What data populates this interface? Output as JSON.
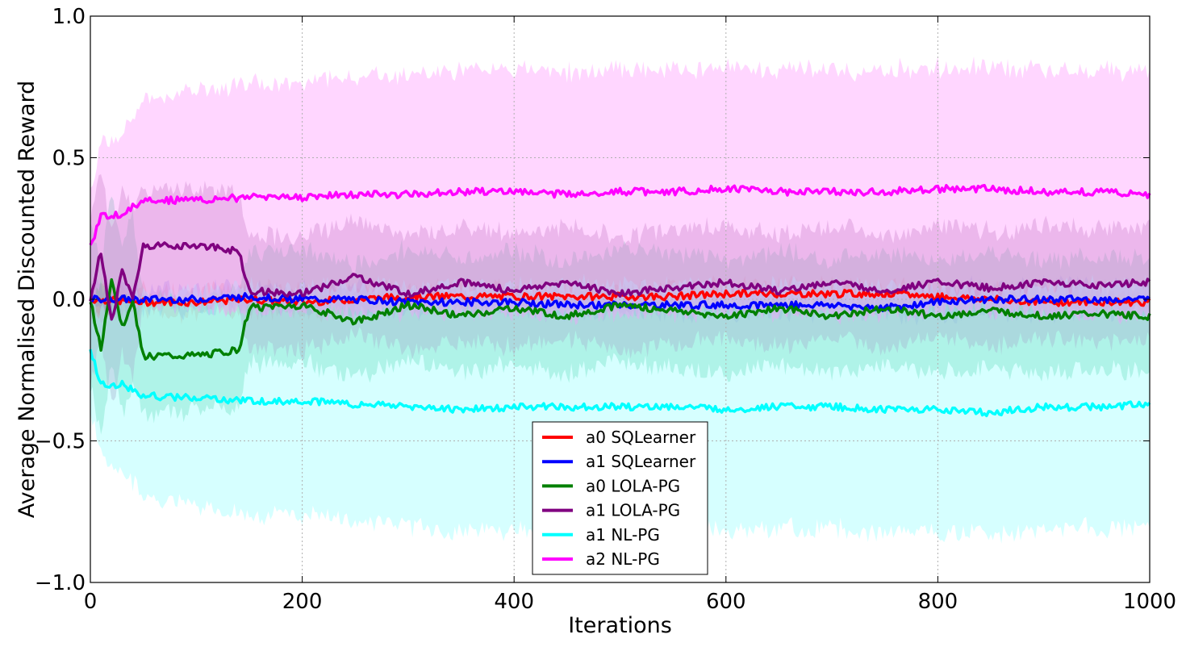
{
  "chart_data": {
    "type": "line",
    "title": "",
    "xlabel": "Iterations",
    "ylabel": "Average Normalised Discounted Reward",
    "xlim": [
      0,
      1000
    ],
    "ylim": [
      -1.0,
      1.0
    ],
    "grid": true,
    "legend_position": "bottom-center",
    "x_ticks": [
      "0",
      "200",
      "400",
      "600",
      "800",
      "1000"
    ],
    "y_ticks": [
      "−1.0",
      "−0.5",
      "0.0",
      "0.5",
      "1.0"
    ],
    "x_tick_values": [
      0,
      200,
      400,
      600,
      800,
      1000
    ],
    "y_tick_values": [
      -1.0,
      -0.5,
      0.0,
      0.5,
      1.0
    ],
    "series": [
      {
        "name": "a0 SQLearner",
        "color": "#ff0000",
        "x": [
          0,
          50,
          100,
          150,
          200,
          250,
          300,
          350,
          400,
          450,
          500,
          550,
          600,
          650,
          700,
          750,
          800,
          850,
          900,
          950,
          1000
        ],
        "values": [
          0.0,
          -0.01,
          -0.01,
          0.0,
          -0.01,
          0.0,
          0.01,
          0.01,
          0.01,
          0.01,
          0.01,
          0.01,
          0.02,
          0.02,
          0.02,
          0.02,
          0.01,
          0.0,
          -0.01,
          -0.01,
          -0.01
        ],
        "band": [
          0.06,
          0.04,
          0.04,
          0.04,
          0.04,
          0.04,
          0.03,
          0.03,
          0.03,
          0.03,
          0.03,
          0.03,
          0.03,
          0.03,
          0.03,
          0.03,
          0.03,
          0.03,
          0.03,
          0.03,
          0.03
        ],
        "band_color": "#ff9999"
      },
      {
        "name": "a1 SQLearner",
        "color": "#0000ff",
        "x": [
          0,
          50,
          100,
          150,
          200,
          250,
          300,
          350,
          400,
          450,
          500,
          550,
          600,
          650,
          700,
          750,
          800,
          850,
          900,
          950,
          1000
        ],
        "values": [
          0.0,
          0.0,
          0.0,
          0.01,
          0.0,
          0.0,
          -0.01,
          -0.01,
          -0.01,
          -0.02,
          -0.02,
          -0.02,
          -0.02,
          -0.02,
          -0.02,
          -0.03,
          -0.01,
          0.0,
          0.0,
          0.0,
          0.0
        ],
        "band": [
          0.05,
          0.04,
          0.04,
          0.04,
          0.04,
          0.04,
          0.03,
          0.03,
          0.03,
          0.03,
          0.03,
          0.03,
          0.03,
          0.03,
          0.03,
          0.03,
          0.05,
          0.05,
          0.05,
          0.05,
          0.05
        ],
        "band_color": "#9999ff"
      },
      {
        "name": "a0 LOLA-PG",
        "color": "#008000",
        "x": [
          0,
          10,
          20,
          30,
          40,
          50,
          100,
          140,
          150,
          200,
          250,
          300,
          350,
          400,
          450,
          500,
          550,
          600,
          650,
          700,
          750,
          800,
          850,
          900,
          950,
          1000
        ],
        "values": [
          0.0,
          -0.18,
          0.08,
          -0.1,
          0.0,
          -0.2,
          -0.2,
          -0.18,
          -0.03,
          -0.02,
          -0.08,
          -0.02,
          -0.06,
          -0.03,
          -0.06,
          -0.02,
          -0.04,
          -0.06,
          -0.03,
          -0.06,
          -0.03,
          -0.06,
          -0.04,
          -0.06,
          -0.05,
          -0.06
        ],
        "band": [
          0.3,
          0.3,
          0.3,
          0.3,
          0.3,
          0.2,
          0.2,
          0.2,
          0.2,
          0.2,
          0.2,
          0.2,
          0.2,
          0.2,
          0.2,
          0.2,
          0.2,
          0.2,
          0.2,
          0.2,
          0.2,
          0.2,
          0.2,
          0.2,
          0.2,
          0.2
        ],
        "band_color": "#60d0a0"
      },
      {
        "name": "a1 LOLA-PG",
        "color": "#800080",
        "x": [
          0,
          10,
          20,
          30,
          40,
          50,
          100,
          140,
          150,
          200,
          250,
          300,
          350,
          400,
          450,
          500,
          550,
          600,
          650,
          700,
          750,
          800,
          850,
          900,
          950,
          1000
        ],
        "values": [
          0.0,
          0.17,
          -0.08,
          0.1,
          0.0,
          0.19,
          0.19,
          0.17,
          0.03,
          0.02,
          0.08,
          0.02,
          0.06,
          0.03,
          0.06,
          0.02,
          0.04,
          0.06,
          0.03,
          0.06,
          0.03,
          0.06,
          0.04,
          0.06,
          0.05,
          0.06
        ],
        "band": [
          0.3,
          0.3,
          0.3,
          0.3,
          0.3,
          0.2,
          0.2,
          0.2,
          0.2,
          0.2,
          0.2,
          0.2,
          0.2,
          0.2,
          0.2,
          0.2,
          0.2,
          0.2,
          0.2,
          0.2,
          0.2,
          0.2,
          0.2,
          0.2,
          0.2,
          0.2
        ],
        "band_color": "#b080b0"
      },
      {
        "name": "a1 NL-PG",
        "color": "#00ffff",
        "x": [
          0,
          10,
          30,
          50,
          100,
          150,
          200,
          250,
          300,
          350,
          400,
          450,
          500,
          550,
          600,
          650,
          700,
          750,
          800,
          850,
          900,
          950,
          1000
        ],
        "values": [
          -0.18,
          -0.3,
          -0.3,
          -0.34,
          -0.35,
          -0.36,
          -0.36,
          -0.37,
          -0.38,
          -0.39,
          -0.38,
          -0.38,
          -0.38,
          -0.38,
          -0.39,
          -0.38,
          -0.38,
          -0.39,
          -0.39,
          -0.4,
          -0.38,
          -0.38,
          -0.37
        ],
        "band": [
          0.2,
          0.25,
          0.3,
          0.35,
          0.38,
          0.4,
          0.4,
          0.42,
          0.42,
          0.43,
          0.43,
          0.43,
          0.43,
          0.43,
          0.43,
          0.43,
          0.43,
          0.43,
          0.43,
          0.43,
          0.43,
          0.43,
          0.43
        ],
        "band_color": "#99ffff"
      },
      {
        "name": "a2 NL-PG",
        "color": "#ff00ff",
        "x": [
          0,
          10,
          30,
          50,
          100,
          150,
          200,
          250,
          300,
          350,
          400,
          450,
          500,
          550,
          600,
          650,
          700,
          750,
          800,
          850,
          900,
          950,
          1000
        ],
        "values": [
          0.18,
          0.29,
          0.3,
          0.35,
          0.35,
          0.36,
          0.36,
          0.37,
          0.37,
          0.38,
          0.38,
          0.37,
          0.38,
          0.38,
          0.39,
          0.38,
          0.38,
          0.38,
          0.39,
          0.39,
          0.38,
          0.38,
          0.37
        ],
        "band": [
          0.2,
          0.25,
          0.3,
          0.35,
          0.38,
          0.4,
          0.4,
          0.42,
          0.42,
          0.43,
          0.43,
          0.43,
          0.43,
          0.43,
          0.43,
          0.43,
          0.43,
          0.43,
          0.43,
          0.43,
          0.43,
          0.43,
          0.43
        ],
        "band_color": "#ff99ff"
      }
    ]
  }
}
